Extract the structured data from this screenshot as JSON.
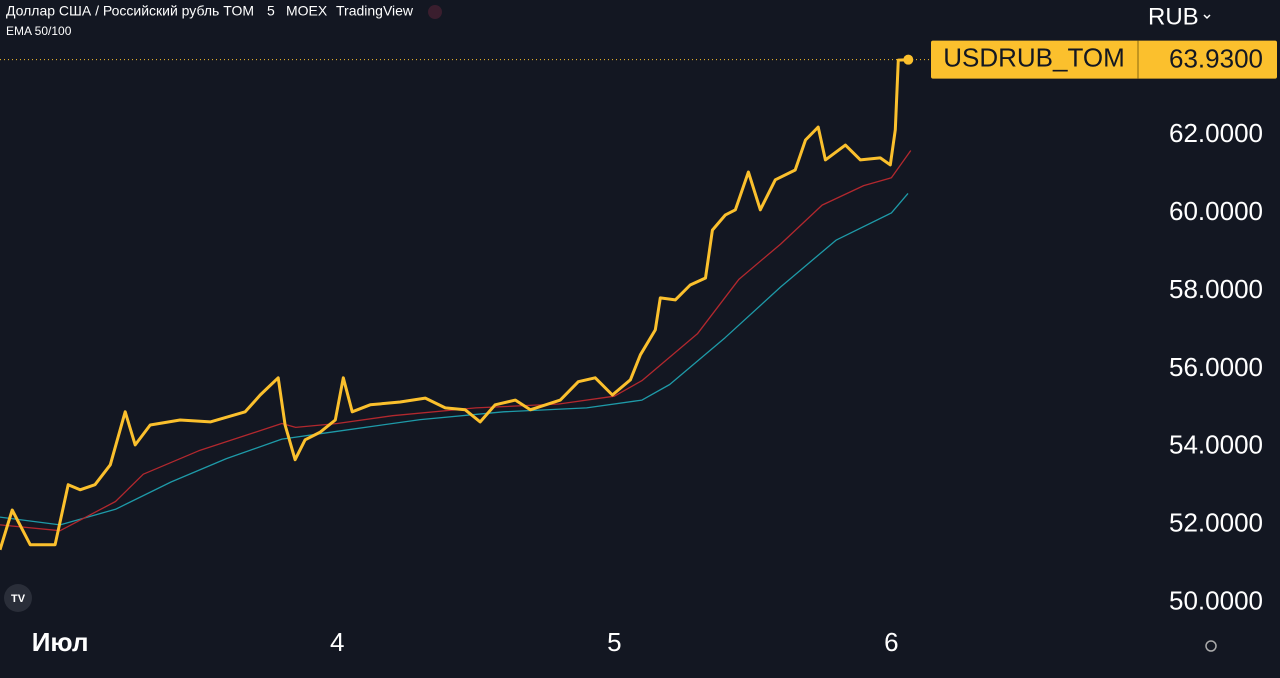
{
  "chart_data": {
    "type": "line",
    "title": "Доллар США / Российский рубль TOM",
    "header_items": [
      "5",
      "MOEX",
      "TradingView"
    ],
    "indicator": "EMA 50/100",
    "currency": "RUB",
    "background": "#131722",
    "xlim": [
      2.783,
      6.89
    ],
    "xticks": [
      {
        "value": 3,
        "label": "Июл"
      },
      4,
      5,
      6
    ],
    "ylim": [
      49.56,
      65.46
    ],
    "yticks": [
      {
        "value": 50,
        "label": "50.0000"
      },
      {
        "value": 52,
        "label": "52.0000"
      },
      {
        "value": 54,
        "label": "54.0000"
      },
      {
        "value": 56,
        "label": "56.0000"
      },
      {
        "value": 58,
        "label": "58.0000"
      },
      {
        "value": 60,
        "label": "60.0000"
      },
      {
        "value": 62,
        "label": "62.0000"
      }
    ],
    "price_tag": {
      "name": "USDRUB_TOM",
      "value": 63.93,
      "label": "63.9300",
      "color": "#fbc02d"
    },
    "series": [
      {
        "name": "USDRUB_TOM",
        "color": "#fbc02d",
        "x": [
          2.783,
          2.827,
          2.892,
          2.982,
          3.029,
          3.072,
          3.126,
          3.181,
          3.235,
          3.271,
          3.325,
          3.433,
          3.542,
          3.668,
          3.722,
          3.787,
          3.812,
          3.848,
          3.884,
          3.939,
          3.993,
          4.022,
          4.054,
          4.119,
          4.227,
          4.318,
          4.39,
          4.462,
          4.516,
          4.57,
          4.643,
          4.697,
          4.805,
          4.87,
          4.931,
          4.993,
          5.058,
          5.094,
          5.148,
          5.166,
          5.22,
          5.274,
          5.329,
          5.354,
          5.401,
          5.437,
          5.484,
          5.527,
          5.581,
          5.653,
          5.69,
          5.736,
          5.762,
          5.834,
          5.888,
          5.96,
          5.996,
          6.014,
          6.025,
          6.061
        ],
        "values": [
          51.36,
          52.38,
          51.49,
          51.49,
          53.03,
          52.9,
          53.03,
          53.54,
          54.9,
          54.05,
          54.56,
          54.69,
          54.64,
          54.9,
          55.33,
          55.77,
          54.56,
          53.67,
          54.18,
          54.38,
          54.69,
          55.77,
          54.9,
          55.08,
          55.15,
          55.25,
          55.0,
          54.95,
          54.64,
          55.08,
          55.2,
          54.95,
          55.2,
          55.67,
          55.77,
          55.33,
          55.72,
          56.36,
          57.0,
          57.82,
          57.77,
          58.15,
          58.33,
          59.56,
          59.95,
          60.08,
          61.05,
          60.08,
          60.85,
          61.1,
          61.87,
          62.2,
          61.36,
          61.74,
          61.36,
          61.41,
          61.23,
          62.13,
          63.92,
          63.93
        ]
      },
      {
        "color": "#b2282e",
        "x": [
          2.783,
          3.0,
          3.2,
          3.3,
          3.5,
          3.8,
          3.85,
          4.0,
          4.2,
          4.5,
          4.8,
          5.0,
          5.1,
          5.3,
          5.45,
          5.6,
          5.75,
          5.9,
          6.0,
          6.07
        ],
        "values": [
          52.0,
          51.85,
          52.6,
          53.3,
          53.9,
          54.6,
          54.5,
          54.6,
          54.8,
          55.0,
          55.1,
          55.3,
          55.7,
          56.9,
          58.3,
          59.2,
          60.2,
          60.7,
          60.9,
          61.6
        ]
      },
      {
        "color": "#1e9aa8",
        "x": [
          2.783,
          3.0,
          3.2,
          3.4,
          3.6,
          3.8,
          4.0,
          4.3,
          4.6,
          4.9,
          5.1,
          5.2,
          5.4,
          5.6,
          5.8,
          6.0,
          6.06
        ],
        "values": [
          52.2,
          52.0,
          52.4,
          53.1,
          53.7,
          54.2,
          54.4,
          54.7,
          54.9,
          55.0,
          55.2,
          55.6,
          56.8,
          58.1,
          59.3,
          60.0,
          60.5
        ]
      }
    ]
  }
}
